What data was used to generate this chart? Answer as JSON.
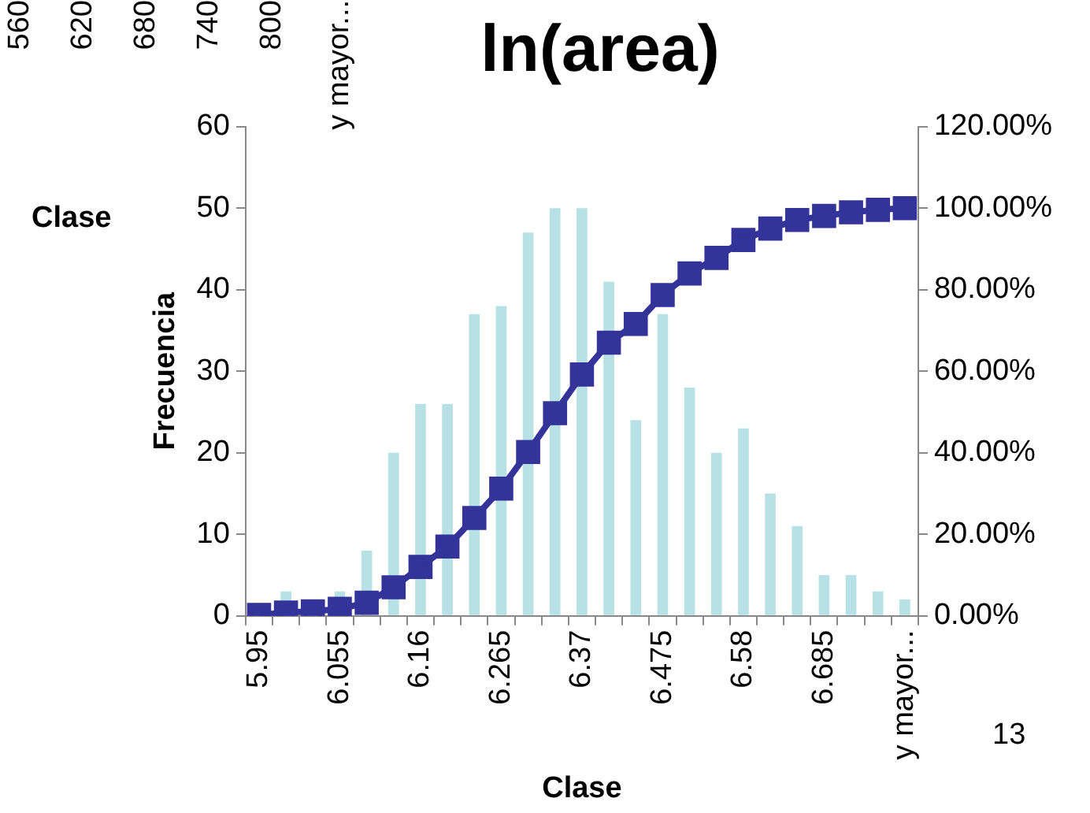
{
  "chart_data": {
    "type": "bar",
    "title": "ln(area)",
    "xlabel": "Clase",
    "ylabel": "Frecuencia",
    "categories": [
      "5.95",
      null,
      null,
      "6.055",
      null,
      null,
      "6.16",
      null,
      null,
      "6.265",
      null,
      null,
      "6.37",
      null,
      null,
      "6.475",
      null,
      null,
      "6.58",
      null,
      null,
      "6.685",
      null,
      null,
      "y mayor..."
    ],
    "series": [
      {
        "color": "#b7e1e5",
        "values": [
          null,
          3,
          null,
          3,
          8,
          20,
          26,
          26,
          37,
          38,
          47,
          50,
          50,
          41,
          24,
          37,
          28,
          20,
          23,
          15,
          11,
          5,
          5,
          3,
          2
        ]
      },
      {
        "type": "line",
        "axis": "y2",
        "color": "#333399",
        "marker": "square",
        "values": [
          0.2,
          0.8,
          1.1,
          1.7,
          3.2,
          7.0,
          12.0,
          17.0,
          24.0,
          31.2,
          40.2,
          49.7,
          59.2,
          67.0,
          71.6,
          78.7,
          84.0,
          87.8,
          92.2,
          95.0,
          97.1,
          98.1,
          99.0,
          99.6,
          100.0
        ]
      }
    ],
    "ylim": [
      0,
      60
    ],
    "yticks": [
      0,
      10,
      20,
      30,
      40,
      50,
      60
    ],
    "y2lim": [
      0,
      120
    ],
    "y2ticks": [
      {
        "value": 0,
        "label": "0.00%"
      },
      {
        "value": 20,
        "label": "20.00%"
      },
      {
        "value": 40,
        "label": "40.00%"
      },
      {
        "value": 60,
        "label": "60.00%"
      },
      {
        "value": 80,
        "label": "80.00%"
      },
      {
        "value": 100,
        "label": "100.00%"
      },
      {
        "value": 120,
        "label": "120.00%"
      }
    ],
    "grid": false,
    "legend": false,
    "annotations": [
      "560",
      "620",
      "680",
      "740",
      "800",
      "y mayor...",
      "Clase",
      "13"
    ]
  }
}
